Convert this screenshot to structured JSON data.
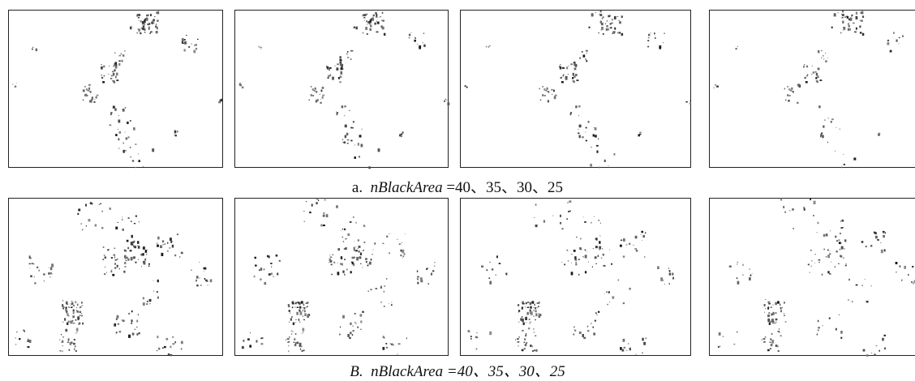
{
  "captions": [
    {
      "label": "a.",
      "variable": "nBlackArea",
      "values": "=40、35、30、25"
    },
    {
      "label": "B.",
      "variable": "nBlackArea",
      "values": "=40、35、30、25"
    }
  ]
}
